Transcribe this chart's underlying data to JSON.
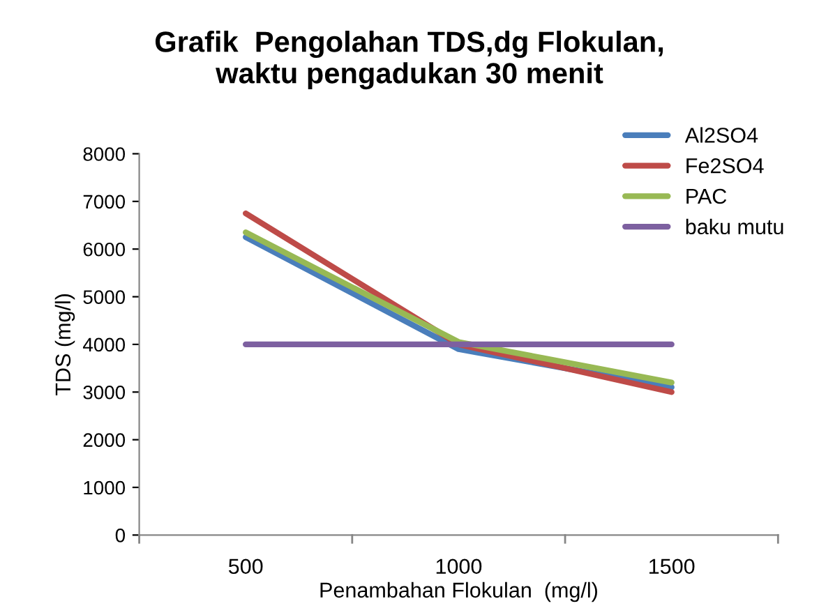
{
  "chart_data": {
    "type": "line",
    "title": "Grafik  Pengolahan TDS,dg Flokulan,\nwaktu pengadukan 30 menit",
    "xlabel": "Penambahan Flokulan  (mg/l)",
    "ylabel": "TDS (mg/l)",
    "categories": [
      "500",
      "1000",
      "1500"
    ],
    "series": [
      {
        "name": "Al2SO4",
        "color": "#4a7ebb",
        "values": [
          6250,
          3900,
          3100
        ]
      },
      {
        "name": "Fe2SO4",
        "color": "#be4b48",
        "values": [
          6750,
          4000,
          3000
        ]
      },
      {
        "name": "PAC",
        "color": "#98b954",
        "values": [
          6350,
          4050,
          3200
        ]
      },
      {
        "name": "baku mutu",
        "color": "#7d60a0",
        "values": [
          4000,
          4000,
          4000
        ]
      }
    ],
    "ylim": [
      0,
      8000
    ],
    "yticks": [
      0,
      1000,
      2000,
      3000,
      4000,
      5000,
      6000,
      7000,
      8000
    ],
    "grid": false,
    "legend": "top right",
    "marker": "none",
    "line_style": "solid"
  }
}
